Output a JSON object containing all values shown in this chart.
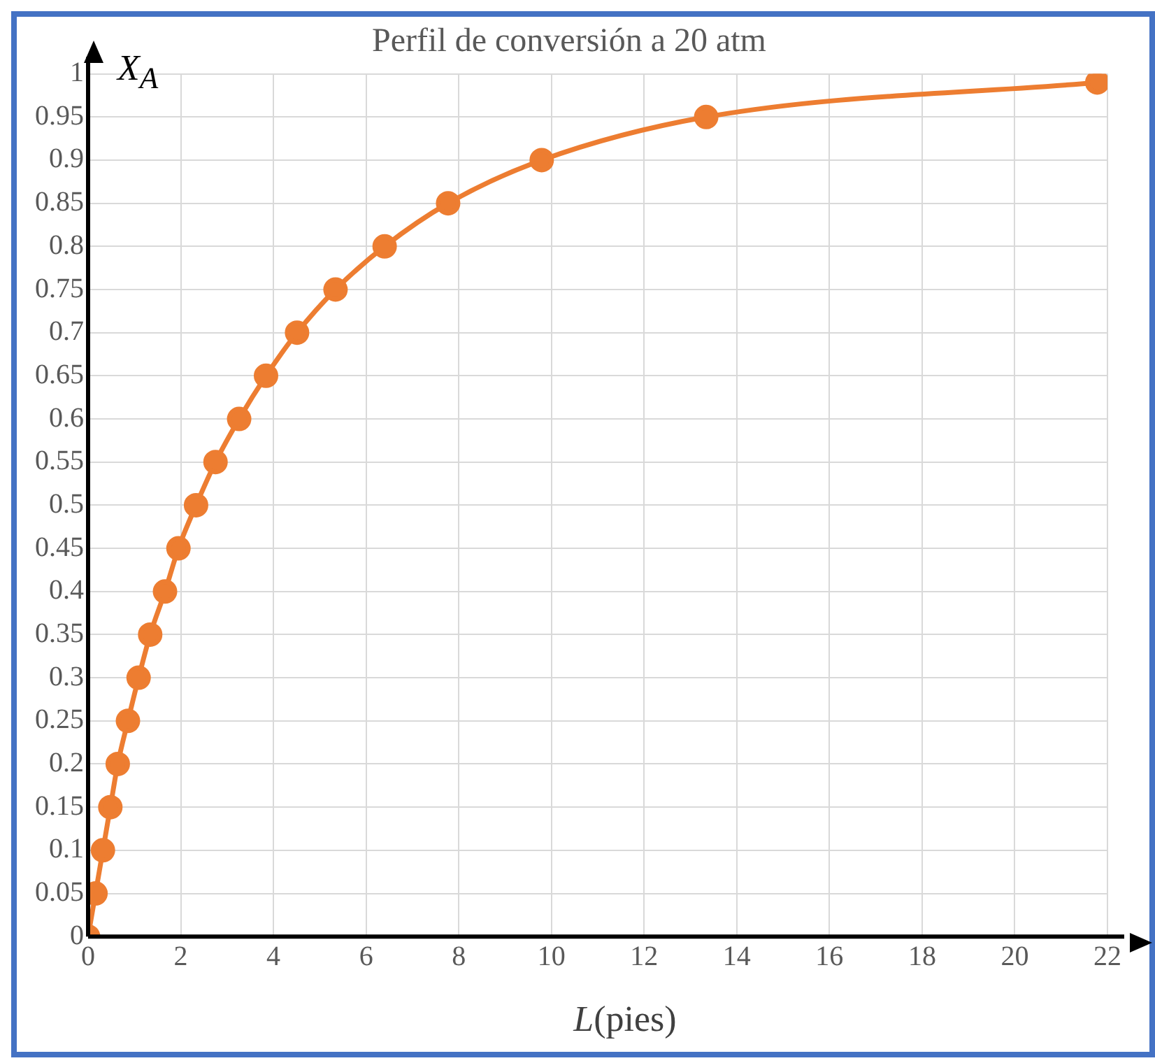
{
  "chart_data": {
    "type": "line",
    "title": "Perfil de conversión a 20 atm",
    "xlabel": "L(pies)",
    "ylabel": "X$_{A}$",
    "x": [
      0,
      0.16,
      0.32,
      0.48,
      0.64,
      0.86,
      1.09,
      1.34,
      1.66,
      1.95,
      2.33,
      2.75,
      3.26,
      3.84,
      4.51,
      5.34,
      6.4,
      7.77,
      9.79,
      13.34,
      21.78
    ],
    "series": [
      {
        "color": "#ed7d31",
        "values": [
          0,
          0.05,
          0.1,
          0.15,
          0.2,
          0.25,
          0.3,
          0.35,
          0.4,
          0.45,
          0.5,
          0.55,
          0.6,
          0.65,
          0.7,
          0.75,
          0.8,
          0.85,
          0.9,
          0.95,
          0.99
        ]
      }
    ],
    "xlim": [
      0,
      22
    ],
    "xticks": [
      0,
      2,
      4,
      6,
      8,
      10,
      12,
      14,
      16,
      18,
      20,
      22
    ],
    "ylim": [
      0,
      1
    ],
    "yticks": [
      0,
      0.05,
      0.1,
      0.15,
      0.2,
      0.25,
      0.3,
      0.35,
      0.4,
      0.45,
      0.5,
      0.55,
      0.6,
      0.65,
      0.7,
      0.75,
      0.8,
      0.85,
      0.9,
      0.95,
      1
    ],
    "grid": true,
    "legend": false,
    "marker": "circle",
    "line_style": "solid"
  }
}
